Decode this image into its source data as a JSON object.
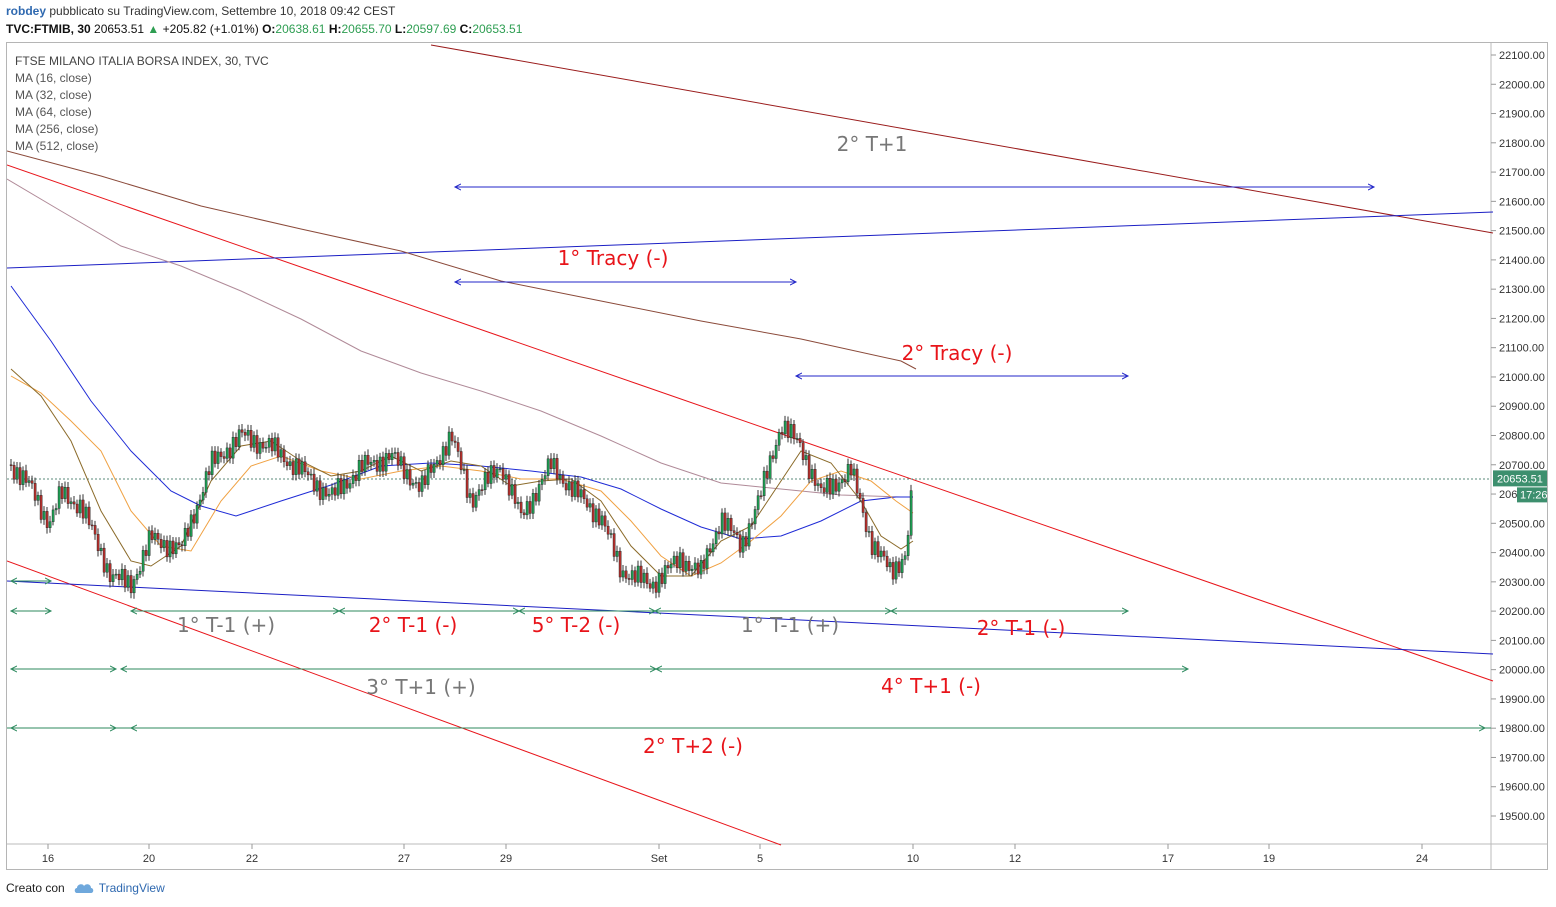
{
  "header": {
    "author": "robdey",
    "published": "pubblicato su TradingView.com, Settembre 10, 2018 09:42 CEST",
    "symbol": "TVC:FTMIB, 30",
    "last": "20653.51",
    "change": "+205.82 (+1.01%)",
    "o_label": "O:",
    "o_value": "20638.61",
    "h_label": "H:",
    "h_value": "20655.70",
    "l_label": "L:",
    "l_value": "20597.69",
    "c_label": "C:",
    "c_value": "20653.51"
  },
  "legend": {
    "title": "FTSE MILANO ITALIA BORSA INDEX, 30, TVC",
    "items": [
      "MA (16, close)",
      "MA (32, close)",
      "MA (64, close)",
      "MA (256, close)",
      "MA (512, close)"
    ]
  },
  "footer": {
    "created": "Creato con",
    "brand": "TradingView"
  },
  "colors": {
    "up": "#26a69a",
    "down": "#ef5350",
    "ma16": "#8b6b2a",
    "ma32": "#f0a142",
    "ma64": "#1f2bd6",
    "ma256": "#b08a98",
    "ma512": "#8b4a3a",
    "trend_red": "#e8141a",
    "trend_dark": "#9a1b1b",
    "trend_blue": "#1b1fc4",
    "arrow_blue": "#2226c8",
    "arrow_green": "#2c8a5e",
    "label_grey": "#777777",
    "label_red": "#e8141a"
  },
  "chart_data": {
    "type": "candlestick",
    "price_axis": {
      "ticks": [
        "22100.00",
        "22000.00",
        "21900.00",
        "21800.00",
        "21700.00",
        "21600.00",
        "21500.00",
        "21400.00",
        "21300.00",
        "21200.00",
        "21100.00",
        "21000.00",
        "20900.00",
        "20800.00",
        "20700.00",
        "20600.00",
        "20500.00",
        "20400.00",
        "20300.00",
        "20200.00",
        "20100.00",
        "20000.00",
        "19900.00",
        "19800.00",
        "19700.00",
        "19600.00",
        "19500.00"
      ],
      "last_price_label": "20653.51",
      "countdown_label": "17:26",
      "ylim": [
        19410,
        22140
      ]
    },
    "time_axis": {
      "ticks": [
        "16",
        "20",
        "22",
        "27",
        "29",
        "Set",
        "5",
        "10",
        "12",
        "17",
        "19",
        "24"
      ]
    },
    "annotations": [
      {
        "text": "2° T+1",
        "color": "grey"
      },
      {
        "text": "1° Tracy (-)",
        "color": "red"
      },
      {
        "text": "2° Tracy (-)",
        "color": "red"
      },
      {
        "text": "1° T-1 (+)",
        "color": "grey"
      },
      {
        "text": "2° T-1 (-)",
        "color": "red"
      },
      {
        "text": "5° T-2 (-)",
        "color": "red"
      },
      {
        "text": "1° T-1 (+)",
        "color": "grey"
      },
      {
        "text": "2° T-1 (-)",
        "color": "red"
      },
      {
        "text": "3° T+1 (+)",
        "color": "grey"
      },
      {
        "text": "4° T+1 (-)",
        "color": "red"
      },
      {
        "text": "2° T+2 (-)",
        "color": "red"
      }
    ]
  }
}
